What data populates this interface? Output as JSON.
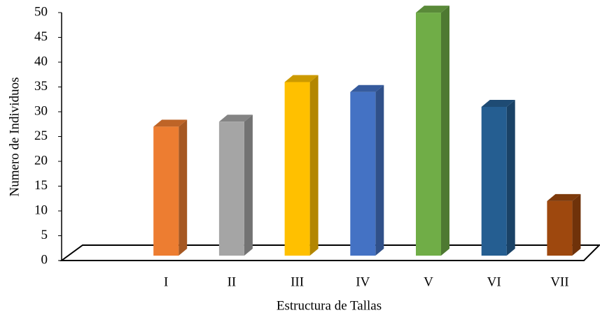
{
  "chart_data": {
    "type": "bar3d",
    "x_label": "Estructura de Tallas",
    "y_label": "Numero de Individuos",
    "categories": [
      null,
      "I",
      "II",
      "III",
      "IV",
      "V",
      "VI",
      "VII"
    ],
    "values": [
      null,
      26,
      27,
      35,
      33,
      49,
      30,
      11
    ],
    "colors": [
      null,
      "#ed7d31",
      "#a5a5a5",
      "#ffc000",
      "#4472c4",
      "#70ad47",
      "#255e91",
      "#9e480e"
    ],
    "ylim": [
      0,
      50
    ],
    "yticks": [
      0,
      5,
      10,
      15,
      20,
      25,
      30,
      35,
      40,
      45,
      50
    ]
  }
}
